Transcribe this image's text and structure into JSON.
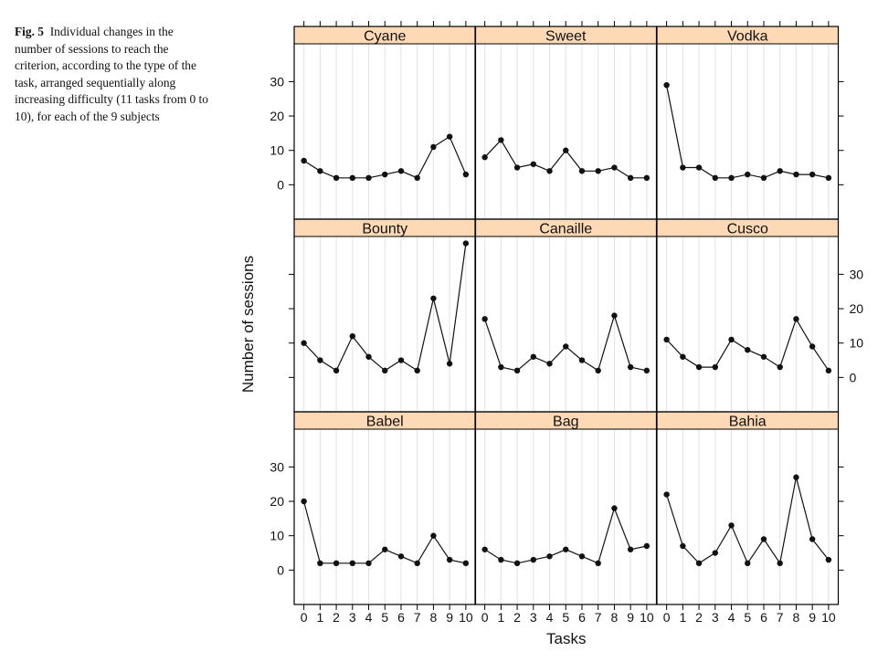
{
  "caption": {
    "label": "Fig. 5",
    "text": "Individual changes in the number of sessions to reach the criterion, according to the type of the task, arranged sequentially along increasing difficulty (11 tasks from 0 to 10), for each of the 9 subjects"
  },
  "chart_data": {
    "type": "line",
    "layout": "3x3 trellis (lattice)",
    "xlabel": "Tasks",
    "ylabel": "Number of sessions",
    "x": [
      0,
      1,
      2,
      3,
      4,
      5,
      6,
      7,
      8,
      9,
      10
    ],
    "x_tick_labels": [
      "0",
      "1",
      "2",
      "3",
      "4",
      "5",
      "6",
      "7",
      "8",
      "9",
      "10"
    ],
    "y_tick_labels": [
      "0",
      "10",
      "20",
      "30"
    ],
    "ylim": [
      -10,
      41
    ],
    "xlim": [
      -0.6,
      10.6
    ],
    "strip_color": "#fdd9b5",
    "series": [
      {
        "name": "Cyane",
        "values": [
          7,
          4,
          2,
          2,
          2,
          3,
          4,
          2,
          11,
          14,
          3
        ]
      },
      {
        "name": "Sweet",
        "values": [
          8,
          13,
          5,
          6,
          4,
          10,
          4,
          4,
          5,
          2,
          2
        ]
      },
      {
        "name": "Vodka",
        "values": [
          29,
          5,
          5,
          2,
          2,
          3,
          2,
          4,
          3,
          3,
          2
        ]
      },
      {
        "name": "Bounty",
        "values": [
          10,
          5,
          2,
          12,
          6,
          2,
          5,
          2,
          23,
          4,
          39
        ]
      },
      {
        "name": "Canaille",
        "values": [
          17,
          3,
          2,
          6,
          4,
          9,
          5,
          2,
          18,
          3,
          2
        ]
      },
      {
        "name": "Cusco",
        "values": [
          11,
          6,
          3,
          3,
          11,
          8,
          6,
          3,
          17,
          9,
          2
        ]
      },
      {
        "name": "Babel",
        "values": [
          20,
          2,
          2,
          2,
          2,
          6,
          4,
          2,
          10,
          3,
          2
        ]
      },
      {
        "name": "Bag",
        "values": [
          6,
          3,
          2,
          3,
          4,
          6,
          4,
          2,
          18,
          6,
          7
        ]
      },
      {
        "name": "Bahia",
        "values": [
          22,
          7,
          2,
          5,
          13,
          2,
          9,
          2,
          27,
          9,
          3
        ]
      }
    ]
  }
}
